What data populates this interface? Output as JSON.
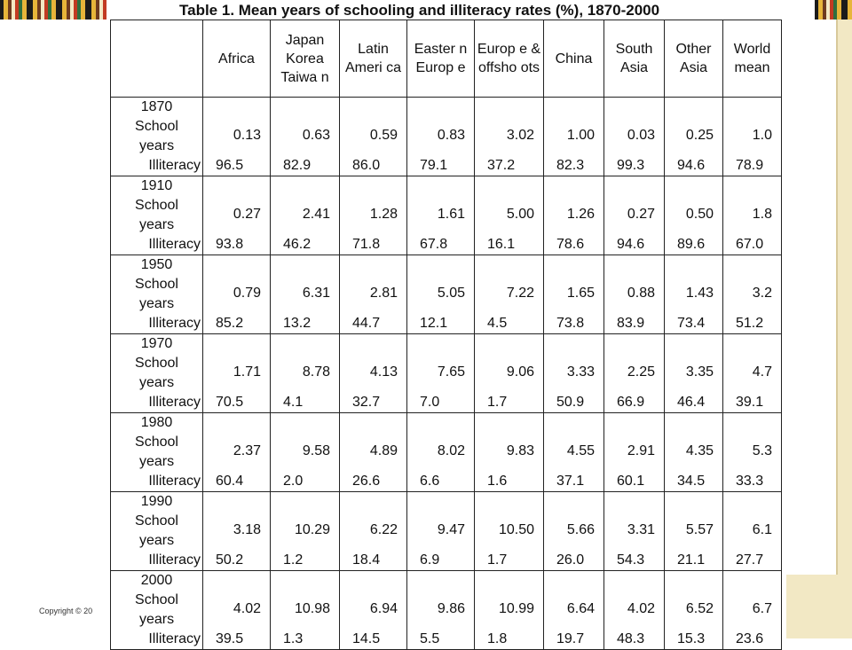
{
  "slide": {
    "title": "Table 1.  Mean years of schooling and illiteracy rates (%), 1870-2000",
    "copyright": "Copyright © 20"
  },
  "table": {
    "headers": [
      "",
      "Africa",
      "Japan Korea Taiwa n",
      "Latin Ameri ca",
      "Easter n Europ e",
      "Europ e & offsho ots",
      "China",
      "South Asia",
      "Other Asia",
      "World mean"
    ],
    "row_labels": {
      "school": "School",
      "years": "years",
      "illiteracy": "Illiteracy"
    },
    "rows": [
      {
        "year": "1870",
        "school_years": [
          "0.13",
          "0.63",
          "0.59",
          "0.83",
          "3.02",
          "1.00",
          "0.03",
          "0.25",
          "1.0"
        ],
        "illiteracy": [
          "96.5",
          "82.9",
          "86.0",
          "79.1",
          "37.2",
          "82.3",
          "99.3",
          "94.6",
          "78.9"
        ]
      },
      {
        "year": "1910",
        "school_years": [
          "0.27",
          "2.41",
          "1.28",
          "1.61",
          "5.00",
          "1.26",
          "0.27",
          "0.50",
          "1.8"
        ],
        "illiteracy": [
          "93.8",
          "46.2",
          "71.8",
          "67.8",
          "16.1",
          "78.6",
          "94.6",
          "89.6",
          "67.0"
        ]
      },
      {
        "year": "1950",
        "school_years": [
          "0.79",
          "6.31",
          "2.81",
          "5.05",
          "7.22",
          "1.65",
          "0.88",
          "1.43",
          "3.2"
        ],
        "illiteracy": [
          "85.2",
          "13.2",
          "44.7",
          "12.1",
          "4.5",
          "73.8",
          "83.9",
          "73.4",
          "51.2"
        ]
      },
      {
        "year": "1970",
        "school_years": [
          "1.71",
          "8.78",
          "4.13",
          "7.65",
          "9.06",
          "3.33",
          "2.25",
          "3.35",
          "4.7"
        ],
        "illiteracy": [
          "70.5",
          "4.1",
          "32.7",
          "7.0",
          "1.7",
          "50.9",
          "66.9",
          "46.4",
          "39.1"
        ]
      },
      {
        "year": "1980",
        "school_years": [
          "2.37",
          "9.58",
          "4.89",
          "8.02",
          "9.83",
          "4.55",
          "2.91",
          "4.35",
          "5.3"
        ],
        "illiteracy": [
          "60.4",
          "2.0",
          "26.6",
          "6.6",
          "1.6",
          "37.1",
          "60.1",
          "34.5",
          "33.3"
        ]
      },
      {
        "year": "1990",
        "school_years": [
          "3.18",
          "10.29",
          "6.22",
          "9.47",
          "10.50",
          "5.66",
          "3.31",
          "5.57",
          "6.1"
        ],
        "illiteracy": [
          "50.2",
          "1.2",
          "18.4",
          "6.9",
          "1.7",
          "26.0",
          "54.3",
          "21.1",
          "27.7"
        ]
      },
      {
        "year": "2000",
        "school_years": [
          "4.02",
          "10.98",
          "6.94",
          "9.86",
          "10.99",
          "6.64",
          "4.02",
          "6.52",
          "6.7"
        ],
        "illiteracy": [
          "39.5",
          "1.3",
          "14.5",
          "5.5",
          "1.8",
          "19.7",
          "48.3",
          "15.3",
          "23.6"
        ]
      }
    ]
  }
}
